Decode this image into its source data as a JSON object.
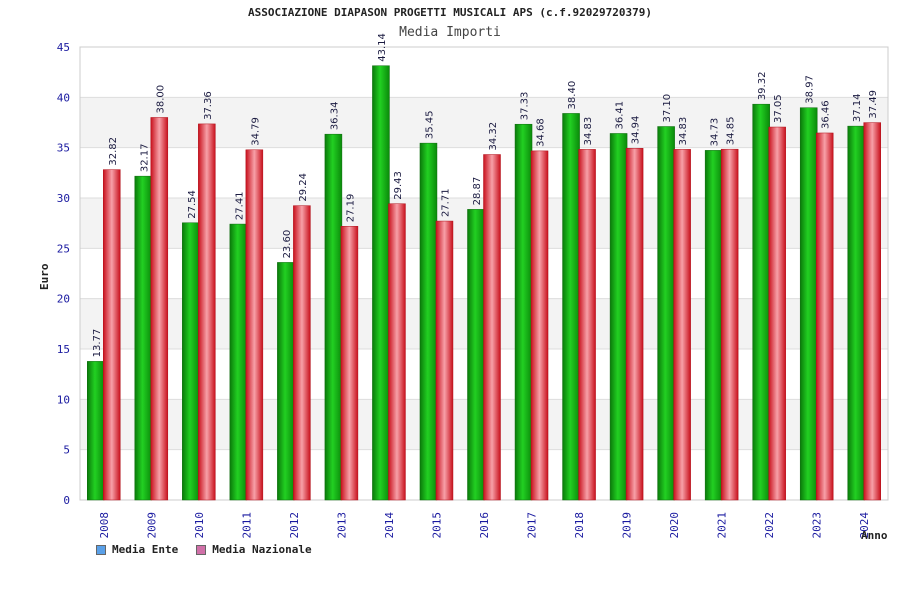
{
  "title": "ASSOCIAZIONE DIAPASON PROGETTI MUSICALI APS (c.f.92029720379)",
  "subtitle": "Media Importi",
  "colors": {
    "ente": "#14b814",
    "nazionale": "#e8323c",
    "legend_ente": "#5aa0e8",
    "legend_nazionale": "#d070a8",
    "axis_text": "#1a1aa0",
    "band": "#f3f3f3"
  },
  "chart_data": {
    "type": "bar",
    "title": "Media Importi",
    "xlabel": "Anno",
    "ylabel": "Euro",
    "ylim": [
      0,
      45
    ],
    "yticks": [
      0,
      5,
      10,
      15,
      20,
      25,
      30,
      35,
      40,
      45
    ],
    "categories": [
      "2008",
      "2009",
      "2010",
      "2011",
      "2012",
      "2013",
      "2014",
      "2015",
      "2016",
      "2017",
      "2018",
      "2019",
      "2020",
      "2021",
      "2022",
      "2023",
      "2024"
    ],
    "series": [
      {
        "name": "Media Ente",
        "values": [
          13.77,
          32.17,
          27.54,
          27.41,
          23.6,
          36.34,
          43.14,
          35.45,
          28.87,
          37.33,
          38.4,
          36.41,
          37.1,
          34.73,
          39.32,
          38.97,
          37.14
        ]
      },
      {
        "name": "Media Nazionale",
        "values": [
          32.82,
          38.0,
          37.36,
          34.79,
          29.24,
          27.19,
          29.43,
          27.71,
          34.32,
          34.68,
          34.83,
          34.94,
          34.83,
          34.85,
          37.05,
          36.46,
          37.49
        ]
      }
    ],
    "legend_position": "bottom-left",
    "grid": true
  }
}
